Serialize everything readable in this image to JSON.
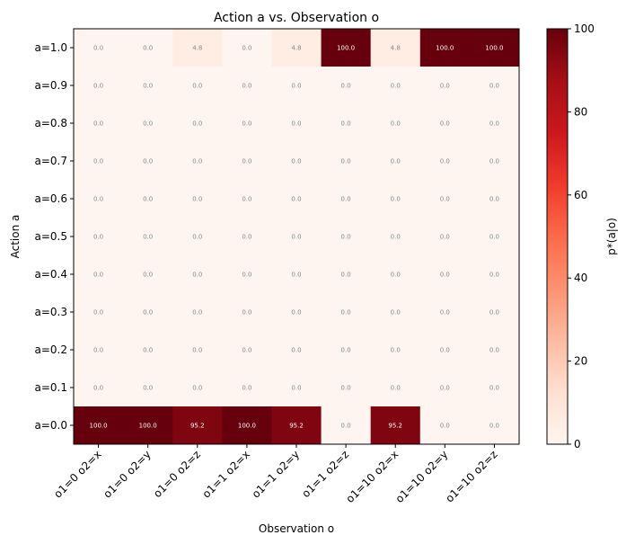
{
  "chart_data": {
    "type": "heatmap",
    "title": "Action a vs. Observation o",
    "xlabel": "Observation o",
    "ylabel": "Action a",
    "colorbar_label": "p*(a|o)",
    "colormap": "Reds",
    "value_range": [
      0,
      100
    ],
    "colorbar_ticks": [
      "0",
      "20",
      "40",
      "60",
      "80",
      "100"
    ],
    "x_categories": [
      "o1=0 o2=x",
      "o1=0 o2=y",
      "o1=0 o2=z",
      "o1=1 o2=x",
      "o1=1 o2=y",
      "o1=1 o2=z",
      "o1=10 o2=x",
      "o1=10 o2=y",
      "o1=10 o2=z"
    ],
    "y_categories": [
      "a=1.0",
      "a=0.9",
      "a=0.8",
      "a=0.7",
      "a=0.6",
      "a=0.5",
      "a=0.4",
      "a=0.3",
      "a=0.2",
      "a=0.1",
      "a=0.0"
    ],
    "values": [
      [
        0.0,
        0.0,
        4.8,
        0.0,
        4.8,
        100.0,
        4.8,
        100.0,
        100.0
      ],
      [
        0.0,
        0.0,
        0.0,
        0.0,
        0.0,
        0.0,
        0.0,
        0.0,
        0.0
      ],
      [
        0.0,
        0.0,
        0.0,
        0.0,
        0.0,
        0.0,
        0.0,
        0.0,
        0.0
      ],
      [
        0.0,
        0.0,
        0.0,
        0.0,
        0.0,
        0.0,
        0.0,
        0.0,
        0.0
      ],
      [
        0.0,
        0.0,
        0.0,
        0.0,
        0.0,
        0.0,
        0.0,
        0.0,
        0.0
      ],
      [
        0.0,
        0.0,
        0.0,
        0.0,
        0.0,
        0.0,
        0.0,
        0.0,
        0.0
      ],
      [
        0.0,
        0.0,
        0.0,
        0.0,
        0.0,
        0.0,
        0.0,
        0.0,
        0.0
      ],
      [
        0.0,
        0.0,
        0.0,
        0.0,
        0.0,
        0.0,
        0.0,
        0.0,
        0.0
      ],
      [
        0.0,
        0.0,
        0.0,
        0.0,
        0.0,
        0.0,
        0.0,
        0.0,
        0.0
      ],
      [
        0.0,
        0.0,
        0.0,
        0.0,
        0.0,
        0.0,
        0.0,
        0.0,
        0.0
      ],
      [
        100.0,
        100.0,
        95.2,
        100.0,
        95.2,
        0.0,
        95.2,
        0.0,
        0.0
      ]
    ],
    "cell_labels": [
      [
        "0.0",
        "0.0",
        "4.8",
        "0.0",
        "4.8",
        "100.0",
        "4.8",
        "100.0",
        "100.0"
      ],
      [
        "0.0",
        "0.0",
        "0.0",
        "0.0",
        "0.0",
        "0.0",
        "0.0",
        "0.0",
        "0.0"
      ],
      [
        "0.0",
        "0.0",
        "0.0",
        "0.0",
        "0.0",
        "0.0",
        "0.0",
        "0.0",
        "0.0"
      ],
      [
        "0.0",
        "0.0",
        "0.0",
        "0.0",
        "0.0",
        "0.0",
        "0.0",
        "0.0",
        "0.0"
      ],
      [
        "0.0",
        "0.0",
        "0.0",
        "0.0",
        "0.0",
        "0.0",
        "0.0",
        "0.0",
        "0.0"
      ],
      [
        "0.0",
        "0.0",
        "0.0",
        "0.0",
        "0.0",
        "0.0",
        "0.0",
        "0.0",
        "0.0"
      ],
      [
        "0.0",
        "0.0",
        "0.0",
        "0.0",
        "0.0",
        "0.0",
        "0.0",
        "0.0",
        "0.0"
      ],
      [
        "0.0",
        "0.0",
        "0.0",
        "0.0",
        "0.0",
        "0.0",
        "0.0",
        "0.0",
        "0.0"
      ],
      [
        "0.0",
        "0.0",
        "0.0",
        "0.0",
        "0.0",
        "0.0",
        "0.0",
        "0.0",
        "0.0"
      ],
      [
        "0.0",
        "0.0",
        "0.0",
        "0.0",
        "0.0",
        "0.0",
        "0.0",
        "0.0",
        "0.0"
      ],
      [
        "100.0",
        "100.0",
        "95.2",
        "100.0",
        "95.2",
        "0.0",
        "95.2",
        "0.0",
        "0.0"
      ]
    ],
    "label_color_low": "#7f8c8d",
    "label_color_high": "#ffffff"
  }
}
